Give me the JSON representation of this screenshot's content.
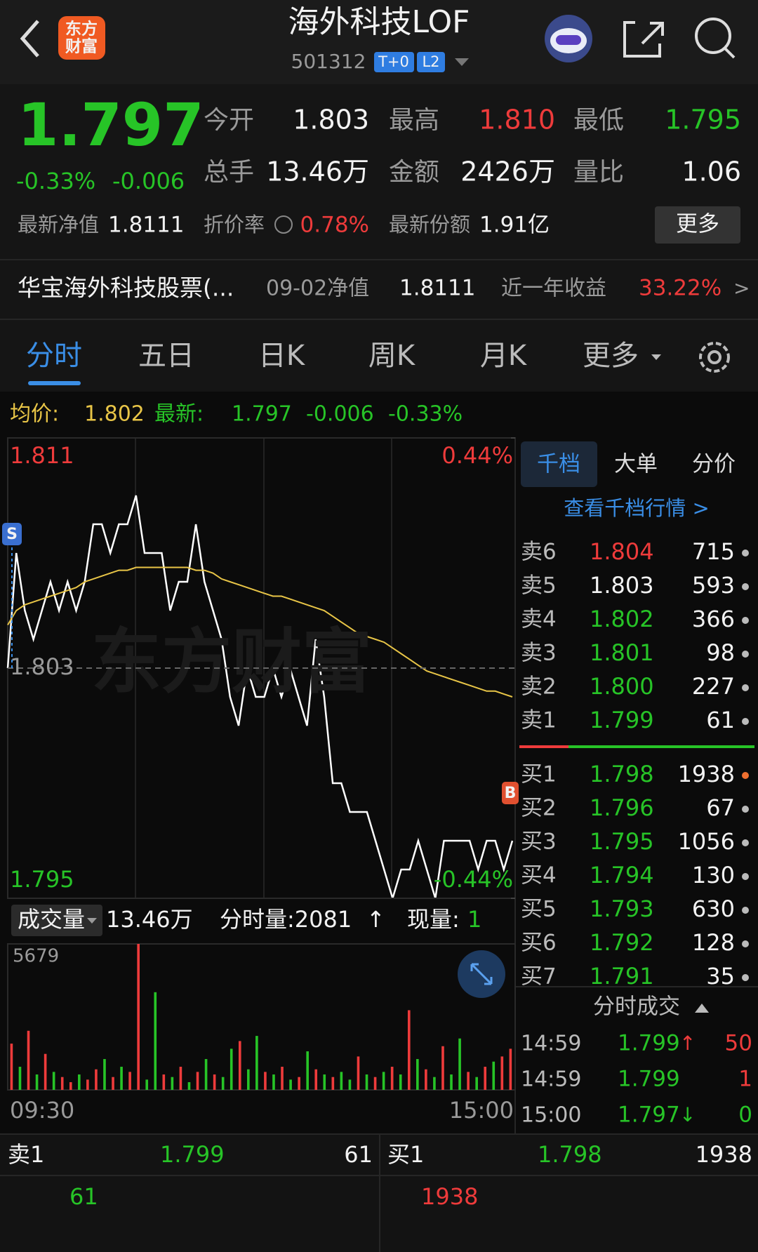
{
  "header": {
    "logo": [
      "东方",
      "财富"
    ],
    "title": "海外科技LOF",
    "code": "501312",
    "badges": [
      "T+0",
      "L2"
    ]
  },
  "quote": {
    "price": "1.797",
    "change_pct": "-0.33%",
    "change": "-0.006",
    "fields": [
      {
        "label": "今开",
        "value": "1.803"
      },
      {
        "label": "最高",
        "value": "1.810"
      },
      {
        "label": "最低",
        "value": "1.795"
      },
      {
        "label": "总手",
        "value": "13.46万"
      },
      {
        "label": "金额",
        "value": "2426万"
      },
      {
        "label": "量比",
        "value": "1.06"
      }
    ],
    "nav_label": "最新净值",
    "nav": "1.8111",
    "discount_label": "折价率",
    "discount": "0.78%",
    "shares_label": "最新份额",
    "shares": "1.91亿",
    "more": "更多"
  },
  "fund": {
    "name": "华宝海外科技股票(...",
    "nav_label": "09-02净值",
    "nav": "1.8111",
    "return_label": "近一年收益",
    "return": "33.22%",
    "arrow": ">"
  },
  "tabs": [
    "分时",
    "五日",
    "日K",
    "周K",
    "月K",
    "更多"
  ],
  "summary": {
    "avg_label": "均价:",
    "avg": "1.802",
    "latest_label": "最新:",
    "latest": "1.797",
    "change": "-0.006",
    "change_pct": "-0.33%"
  },
  "chart_data": [
    {
      "type": "line",
      "watermark": "东方财富",
      "markers": [
        "S",
        "B"
      ],
      "ylim": [
        1.795,
        1.811
      ],
      "yticks": [
        1.811,
        1.803,
        1.795
      ],
      "y2lim": [
        -0.44,
        0.44
      ],
      "y2ticks": [
        {
          "value": 0.44,
          "label": "0.44%"
        },
        {
          "value": -0.44,
          "label": "-0.44%"
        }
      ],
      "series": [
        {
          "color": "#ffffff",
          "values": [
            1.803,
            1.807,
            1.805,
            1.804,
            1.805,
            1.806,
            1.805,
            1.806,
            1.805,
            1.806,
            1.808,
            1.808,
            1.807,
            1.808,
            1.808,
            1.809,
            1.807,
            1.807,
            1.807,
            1.805,
            1.806,
            1.806,
            1.808,
            1.806,
            1.805,
            1.804,
            1.802,
            1.801,
            1.803,
            1.802,
            1.802,
            1.803,
            1.802,
            1.803,
            1.802,
            1.801,
            1.804,
            1.802,
            1.799,
            1.799,
            1.798,
            1.798,
            1.798,
            1.797,
            1.796,
            1.795,
            1.796,
            1.796,
            1.797,
            1.796,
            1.795,
            1.797,
            1.797,
            1.797,
            1.797,
            1.796,
            1.797,
            1.797,
            1.796,
            1.797
          ]
        },
        {
          "color": "#e8c547",
          "values": [
            1.8045,
            1.805,
            1.8052,
            1.8053,
            1.8054,
            1.8055,
            1.8056,
            1.8057,
            1.8058,
            1.806,
            1.8061,
            1.8062,
            1.8063,
            1.8064,
            1.8064,
            1.8065,
            1.8065,
            1.8065,
            1.8065,
            1.8065,
            1.8065,
            1.8065,
            1.8064,
            1.8064,
            1.8063,
            1.8061,
            1.806,
            1.8059,
            1.8058,
            1.8057,
            1.8056,
            1.8055,
            1.8055,
            1.8054,
            1.8053,
            1.8052,
            1.8051,
            1.805,
            1.8048,
            1.8046,
            1.8044,
            1.8042,
            1.8041,
            1.804,
            1.8039,
            1.8037,
            1.8035,
            1.8033,
            1.8031,
            1.8029,
            1.8028,
            1.8027,
            1.8026,
            1.8025,
            1.8024,
            1.8023,
            1.8022,
            1.8022,
            1.8021,
            1.802
          ]
        }
      ]
    },
    {
      "type": "bar",
      "ylim": [
        0,
        5679
      ],
      "yticks": [
        5679
      ],
      "colors": {
        "up": "#ee3b3b",
        "down": "#27c427"
      },
      "values": [
        1800,
        900,
        2300,
        600,
        1400,
        700,
        500,
        300,
        600,
        400,
        800,
        1200,
        500,
        900,
        700,
        5679,
        400,
        3800,
        600,
        500,
        900,
        300,
        700,
        1200,
        600,
        500,
        1600,
        1900,
        800,
        2100,
        700,
        600,
        900,
        400,
        500,
        1500,
        800,
        600,
        500,
        700,
        400,
        1300,
        600,
        500,
        700,
        900,
        600,
        3100,
        1200,
        800,
        500,
        1700,
        600,
        2000,
        700,
        500,
        900,
        1100,
        1300,
        1600
      ],
      "directions": [
        "up",
        "down",
        "up",
        "down",
        "up",
        "down",
        "up",
        "up",
        "down",
        "up",
        "up",
        "down",
        "up",
        "down",
        "up",
        "up",
        "down",
        "down",
        "up",
        "down",
        "up",
        "down",
        "up",
        "down",
        "up",
        "down",
        "down",
        "up",
        "down",
        "down",
        "up",
        "down",
        "up",
        "down",
        "up",
        "down",
        "up",
        "down",
        "up",
        "down",
        "down",
        "up",
        "down",
        "up",
        "down",
        "up",
        "down",
        "up",
        "down",
        "up",
        "down",
        "up",
        "down",
        "down",
        "up",
        "down",
        "up",
        "down",
        "up",
        "up"
      ],
      "time_labels": [
        "09:30",
        "15:00"
      ]
    }
  ],
  "volume_header": {
    "label": "成交量",
    "total": "13.46万",
    "interval": "分时量:2081",
    "interval_arrow": "↑",
    "current_label": "现量:",
    "current": "1"
  },
  "order_book": {
    "tabs": [
      "千档",
      "大单",
      "分价"
    ],
    "link": "查看千档行情 >",
    "asks": [
      {
        "label": "卖6",
        "price": "1.804",
        "volume": "715"
      },
      {
        "label": "卖5",
        "price": "1.803",
        "volume": "593"
      },
      {
        "label": "卖4",
        "price": "1.802",
        "volume": "366"
      },
      {
        "label": "卖3",
        "price": "1.801",
        "volume": "98"
      },
      {
        "label": "卖2",
        "price": "1.800",
        "volume": "227"
      },
      {
        "label": "卖1",
        "price": "1.799",
        "volume": "61"
      }
    ],
    "bids": [
      {
        "label": "买1",
        "price": "1.798",
        "volume": "1938"
      },
      {
        "label": "买2",
        "price": "1.796",
        "volume": "67"
      },
      {
        "label": "买3",
        "price": "1.795",
        "volume": "1056"
      },
      {
        "label": "买4",
        "price": "1.794",
        "volume": "130"
      },
      {
        "label": "买5",
        "price": "1.793",
        "volume": "630"
      },
      {
        "label": "买6",
        "price": "1.792",
        "volume": "128"
      },
      {
        "label": "买7",
        "price": "1.791",
        "volume": "35"
      }
    ]
  },
  "trades": {
    "title": "分时成交",
    "rows": [
      {
        "time": "14:59",
        "price": "1.799",
        "arrow": "↑",
        "volume": "50"
      },
      {
        "time": "14:59",
        "price": "1.799",
        "volume": "1"
      },
      {
        "time": "15:00",
        "price": "1.797",
        "arrow": "↓",
        "volume": "0"
      }
    ]
  },
  "bottom": {
    "sell": {
      "label": "卖1",
      "price": "1.799",
      "volume": "61",
      "queue": "61"
    },
    "buy": {
      "label": "买1",
      "price": "1.798",
      "volume": "1938",
      "queue": "1938"
    }
  }
}
